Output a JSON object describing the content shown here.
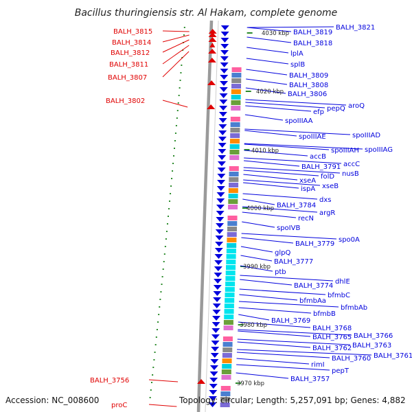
{
  "title": "Bacillus thuringiensis str. Al Hakam, complete genome",
  "footer": {
    "accession": "Accession: NC_008600",
    "topology": "Topology: circular; Length: 5,257,091 bp; Genes: 4,882"
  },
  "colors": {
    "forward": "#e00000",
    "reverse": "#0000dd",
    "backbone": "#9a9a9a",
    "tick": "#2a8a2a",
    "line": "#111111"
  },
  "scale_labels": [
    "4030 kbp",
    "4020 kbp",
    "4010 kbp",
    "4000 kbp",
    "3990 kbp",
    "3980 kbp",
    "3970 kbp"
  ],
  "left_labels": [
    "BALH_3815",
    "BALH_3814",
    "BALH_3812",
    "BALH_3811",
    "BALH_3807",
    "BALH_3802",
    "BALH_3756",
    "proC"
  ],
  "right_labels": [
    "BALH_3821",
    "BALH_3819",
    "BALH_3818",
    "lplA",
    "splB",
    "BALH_3809",
    "BALH_3808",
    "BALH_3806",
    "aroQ",
    "pepQ",
    "efp",
    "spoIIIAA",
    "spoIIIAD",
    "spoIIIAE",
    "spoIIIAG",
    "spoIIIAH",
    "accB",
    "accC",
    "BALH_3791",
    "nusB",
    "folD",
    "xseA",
    "xseB",
    "ispA",
    "dxs",
    "BALH_3784",
    "argR",
    "recN",
    "spoIVB",
    "spo0A",
    "BALH_3779",
    "glpQ",
    "BALH_3777",
    "ptb",
    "dhlE",
    "BALH_3774",
    "bfmbC",
    "bfmbAa",
    "bfmbAb",
    "bfmbB",
    "BALH_3769",
    "BALH_3768",
    "BALH_3766",
    "BALH_3765",
    "BALH_3763",
    "BALH_3762",
    "BALH_3761",
    "BALH_3760",
    "rimI",
    "pepT",
    "BALH_3757"
  ]
}
